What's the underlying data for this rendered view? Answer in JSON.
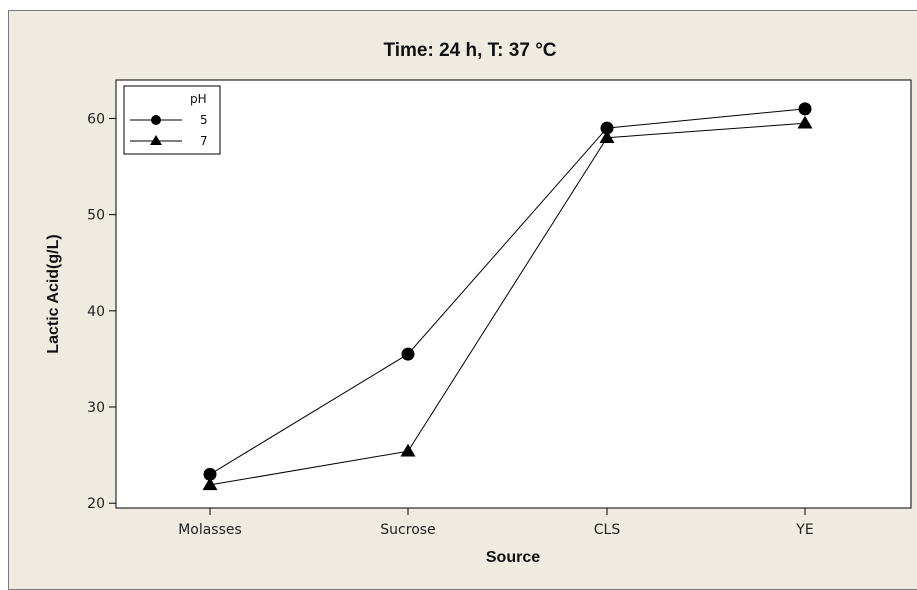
{
  "chart_data": {
    "type": "line",
    "title": "Time: 24 h,  T: 37 °C",
    "xlabel": "Source",
    "ylabel": "Lactic Acid(g/L)",
    "categories": [
      "Molasses",
      "Sucrose",
      "CLS",
      "YE"
    ],
    "ylim": [
      19.5,
      64
    ],
    "yticks": [
      20,
      30,
      40,
      50,
      60
    ],
    "grid": false,
    "legend": {
      "title": "pH",
      "placement": "top-left"
    },
    "series": [
      {
        "name": "5",
        "marker": "circle",
        "values": [
          23.0,
          35.5,
          59.0,
          61.0
        ]
      },
      {
        "name": "7",
        "marker": "triangle",
        "values": [
          21.9,
          25.4,
          58.0,
          59.5
        ]
      }
    ],
    "colors": {
      "line": "#000000",
      "marker": "#000000",
      "plot_background": "#ffffff",
      "frame_background": "#f0ebe0"
    }
  }
}
